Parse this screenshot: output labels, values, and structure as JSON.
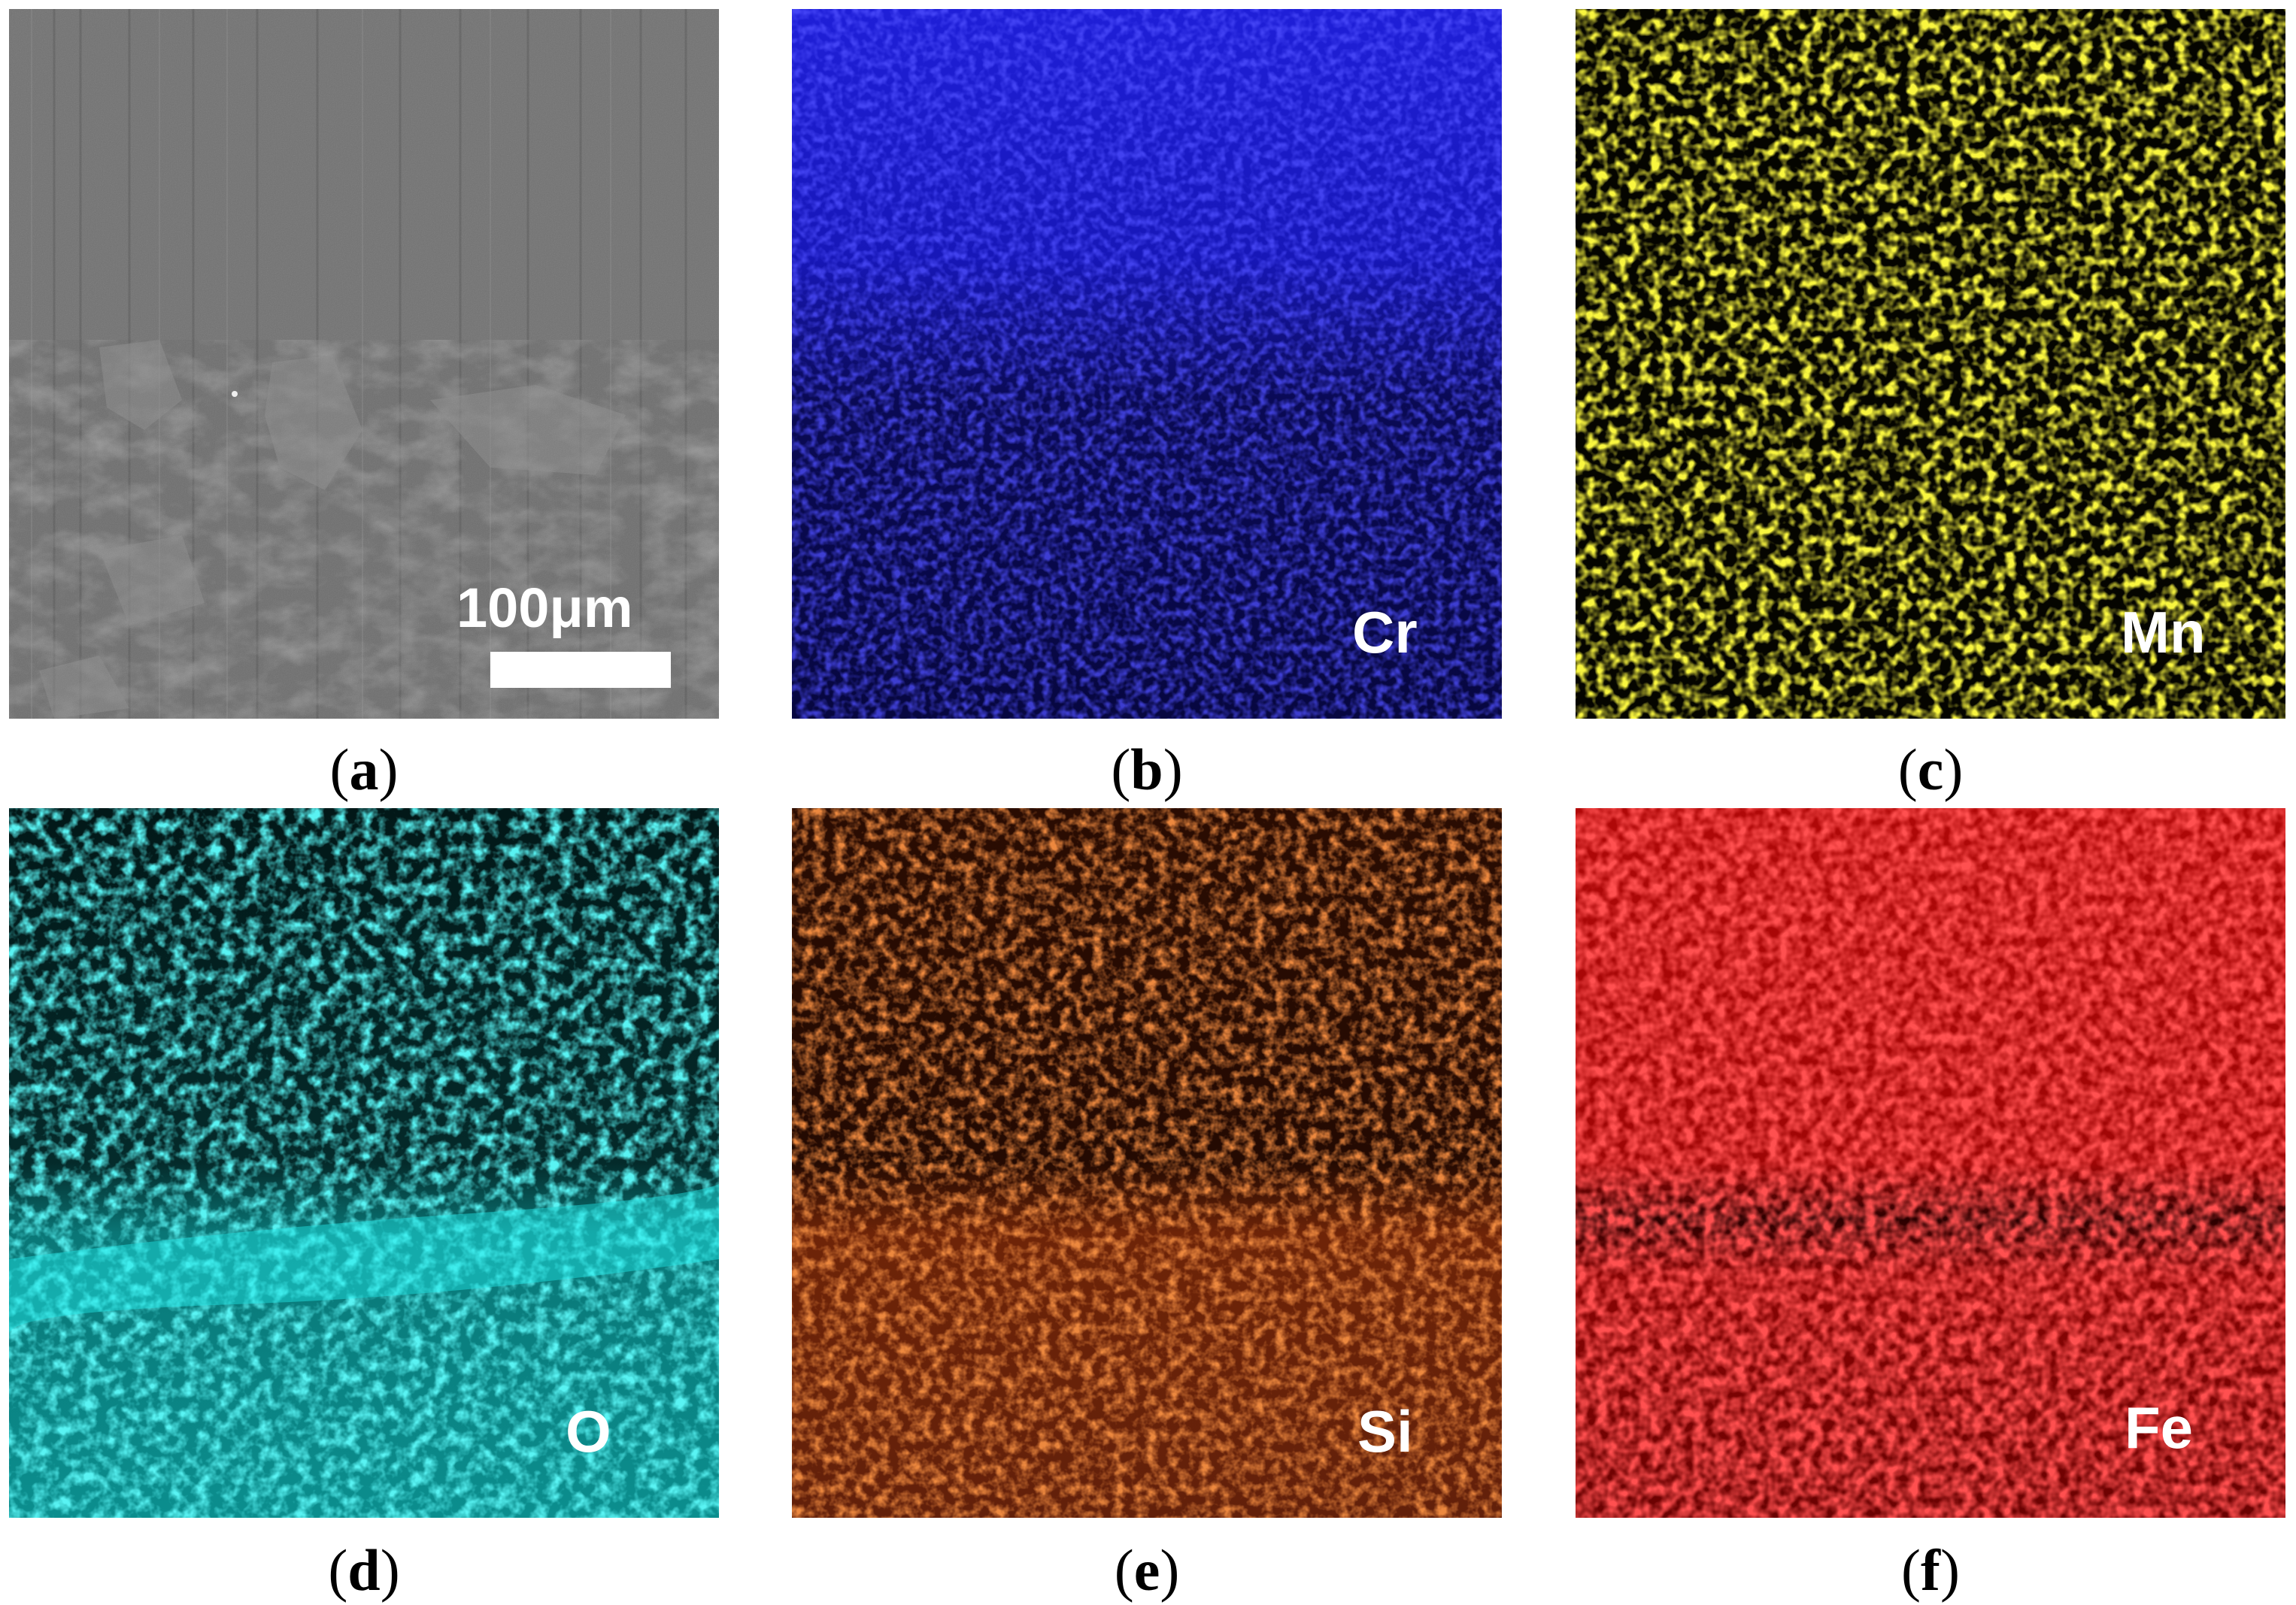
{
  "panels": [
    {
      "id": "a",
      "caption_open": "(",
      "caption_letter": "a",
      "caption_close": ")",
      "type": "sem",
      "scale_label": "100μm"
    },
    {
      "id": "b",
      "caption_open": "(",
      "caption_letter": "b",
      "caption_close": ")",
      "element": "Cr",
      "color": "#1a1aff"
    },
    {
      "id": "c",
      "caption_open": "(",
      "caption_letter": "c",
      "caption_close": ")",
      "element": "Mn",
      "color": "#e6e600"
    },
    {
      "id": "d",
      "caption_open": "(",
      "caption_letter": "d",
      "caption_close": ")",
      "element": "O",
      "color": "#19e6e6"
    },
    {
      "id": "e",
      "caption_open": "(",
      "caption_letter": "e",
      "caption_close": ")",
      "element": "Si",
      "color": "#e0460a"
    },
    {
      "id": "f",
      "caption_open": "(",
      "caption_letter": "f",
      "caption_close": ")",
      "element": "Fe",
      "color": "#ff1010"
    }
  ]
}
